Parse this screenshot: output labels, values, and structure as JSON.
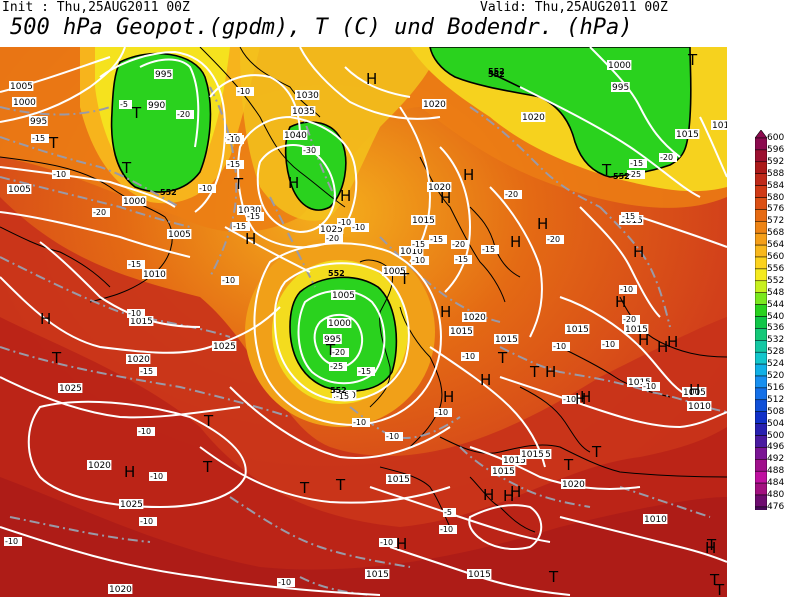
{
  "header": {
    "init": "Init : Thu,25AUG2011 00Z",
    "valid": "Valid: Thu,25AUG2011 00Z",
    "title": "500 hPa Geopot.(gpdm), T (C) und Bodendr. (hPa)"
  },
  "colorbar": {
    "labels": [
      "600",
      "596",
      "592",
      "588",
      "584",
      "580",
      "576",
      "572",
      "568",
      "564",
      "560",
      "556",
      "552",
      "548",
      "544",
      "540",
      "536",
      "532",
      "528",
      "524",
      "520",
      "516",
      "512",
      "508",
      "504",
      "500",
      "496",
      "492",
      "488",
      "484",
      "480",
      "476"
    ],
    "colors": [
      "#8b0a4e",
      "#9c1030",
      "#ac1a1a",
      "#bf2a1a",
      "#d03a16",
      "#dc5014",
      "#e66a12",
      "#ee8414",
      "#f59f18",
      "#f9b81c",
      "#fcd21e",
      "#f5ea1e",
      "#c8f01e",
      "#7ae81e",
      "#28d21e",
      "#10c648",
      "#14c878",
      "#14c8a4",
      "#12c6cc",
      "#10b0e6",
      "#1890f0",
      "#1470e8",
      "#1050d8",
      "#1030c8",
      "#2820b0",
      "#4a1aa0",
      "#7a1494",
      "#a0108c",
      "#c010a0",
      "#a21080",
      "#6e0c70",
      "#480a5a"
    ]
  },
  "map": {
    "colors": {
      "background": "#d83012",
      "isobar": "#ffffff",
      "isotherm": "#9a9aa8",
      "contour": "#000000",
      "land": "#000000"
    },
    "pressure_labels": [
      {
        "t": "1005"
      },
      {
        "t": "1000"
      },
      {
        "t": "995"
      },
      {
        "t": "995"
      },
      {
        "t": "990"
      },
      {
        "t": "1005"
      },
      {
        "t": "1000"
      },
      {
        "t": "1005"
      },
      {
        "t": "1010"
      },
      {
        "t": "1015"
      },
      {
        "t": "1020"
      },
      {
        "t": "1025"
      },
      {
        "t": "1025"
      },
      {
        "t": "1020"
      },
      {
        "t": "1025"
      },
      {
        "t": "1030"
      },
      {
        "t": "1035"
      },
      {
        "t": "1040"
      },
      {
        "t": "1030"
      },
      {
        "t": "1020"
      },
      {
        "t": "1025"
      },
      {
        "t": "1020"
      },
      {
        "t": "1015"
      },
      {
        "t": "1010"
      },
      {
        "t": "1005"
      },
      {
        "t": "1005"
      },
      {
        "t": "1000"
      },
      {
        "t": "995"
      },
      {
        "t": "1010"
      },
      {
        "t": "1015"
      },
      {
        "t": "1020"
      },
      {
        "t": "1015"
      },
      {
        "t": "1015"
      },
      {
        "t": "1015"
      },
      {
        "t": "1020"
      },
      {
        "t": "1015"
      },
      {
        "t": "1015"
      },
      {
        "t": "1015"
      },
      {
        "t": "1015"
      },
      {
        "t": "1015"
      },
      {
        "t": "1015"
      },
      {
        "t": "1010"
      },
      {
        "t": "1005"
      },
      {
        "t": "1010"
      },
      {
        "t": "1015"
      },
      {
        "t": "1020"
      },
      {
        "t": "1015"
      },
      {
        "t": "1000"
      },
      {
        "t": "995"
      },
      {
        "t": "1010"
      },
      {
        "t": "1015"
      },
      {
        "t": "1015"
      },
      {
        "t": "1020"
      }
    ],
    "temp_labels": [
      {
        "t": "-5"
      },
      {
        "t": "-20"
      },
      {
        "t": "-15"
      },
      {
        "t": "-15"
      },
      {
        "t": "-10"
      },
      {
        "t": "-10"
      },
      {
        "t": "-15"
      },
      {
        "t": "-10"
      },
      {
        "t": "-20"
      },
      {
        "t": "-15"
      },
      {
        "t": "-30"
      },
      {
        "t": "-10"
      },
      {
        "t": "-15"
      },
      {
        "t": "-15"
      },
      {
        "t": "-10"
      },
      {
        "t": "-10"
      },
      {
        "t": "-20"
      },
      {
        "t": "-15"
      },
      {
        "t": "-20"
      },
      {
        "t": "-15"
      },
      {
        "t": "-25"
      },
      {
        "t": "-20"
      },
      {
        "t": "-15"
      },
      {
        "t": "-15"
      },
      {
        "t": "-10"
      },
      {
        "t": "-15"
      },
      {
        "t": "-15"
      },
      {
        "t": "-20"
      },
      {
        "t": "-20"
      },
      {
        "t": "-15"
      },
      {
        "t": "-10"
      },
      {
        "t": "-10"
      },
      {
        "t": "-10"
      },
      {
        "t": "-15"
      },
      {
        "t": "-10"
      },
      {
        "t": "-10"
      },
      {
        "t": "-10"
      },
      {
        "t": "-10"
      },
      {
        "t": "-10"
      },
      {
        "t": "-10"
      },
      {
        "t": "-10"
      },
      {
        "t": "-10"
      },
      {
        "t": "-10"
      },
      {
        "t": "-10"
      },
      {
        "t": "-10"
      },
      {
        "t": "-10"
      },
      {
        "t": "-10"
      },
      {
        "t": "-5"
      },
      {
        "t": "-10"
      },
      {
        "t": "-10"
      },
      {
        "t": "-15"
      },
      {
        "t": "-20"
      },
      {
        "t": "-25"
      },
      {
        "t": "-20"
      }
    ],
    "geopot_labels": [
      {
        "t": "552"
      },
      {
        "t": "552"
      },
      {
        "t": "552"
      },
      {
        "t": "552"
      },
      {
        "t": "552"
      },
      {
        "t": "552"
      }
    ],
    "h_markers": [
      "H",
      "H",
      "H",
      "H",
      "H",
      "H",
      "H",
      "H",
      "H",
      "H",
      "H",
      "H",
      "H",
      "H",
      "H",
      "H",
      "H",
      "H",
      "H",
      "H",
      "H",
      "H",
      "H",
      "H",
      "H",
      "H",
      "H"
    ],
    "t_markers": [
      "T",
      "T",
      "T",
      "T",
      "T",
      "T",
      "T",
      "T",
      "T",
      "T",
      "T",
      "T",
      "T",
      "T",
      "T",
      "T",
      "T",
      "T",
      "T",
      "T",
      "T"
    ]
  }
}
